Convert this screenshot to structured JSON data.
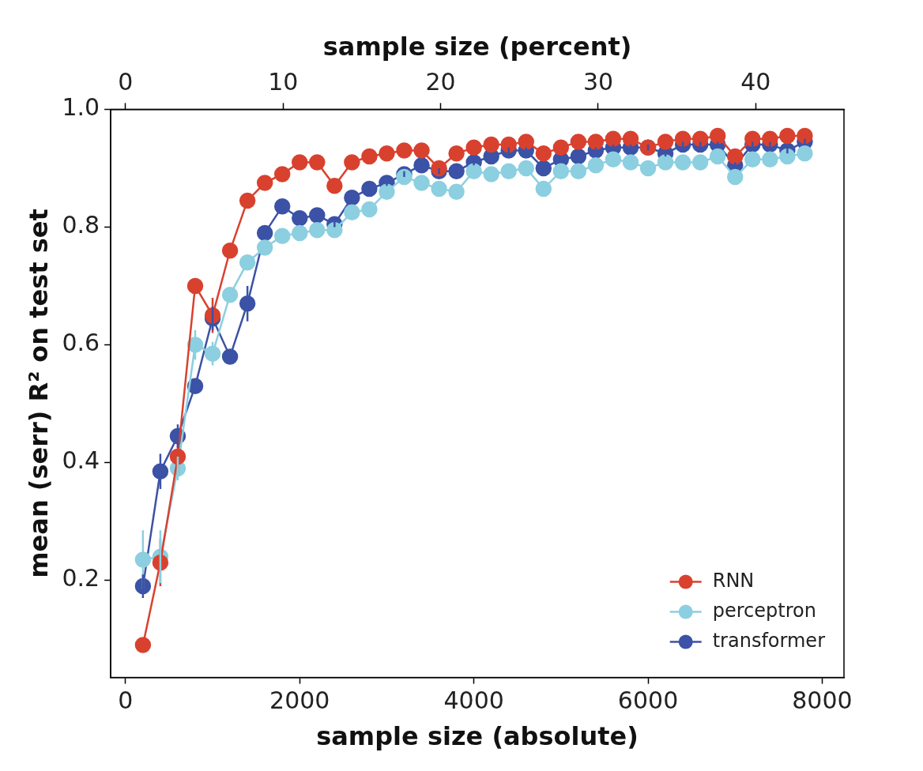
{
  "chart_data": {
    "type": "line",
    "x_label": "sample size (absolute)",
    "y_label": "mean (serr) R² on test set",
    "x2_label": "sample size (percent)",
    "xlim": [
      -170,
      8250
    ],
    "xticks": [
      0,
      2000,
      4000,
      6000,
      8000
    ],
    "x2lim": [
      -0.94,
      45.6
    ],
    "x2ticks": [
      0,
      10,
      20,
      30,
      40
    ],
    "ylim": [
      0.035,
      1.0
    ],
    "yticks": [
      0.2,
      0.4,
      0.6,
      0.8,
      {
        "value": 1,
        "label": "1.0"
      }
    ],
    "grid": false,
    "legend": "lower right",
    "x": [
      200,
      400,
      600,
      800,
      1000,
      1200,
      1400,
      1600,
      1800,
      2000,
      2200,
      2400,
      2600,
      2800,
      3000,
      3200,
      3400,
      3600,
      3800,
      4000,
      4200,
      4400,
      4600,
      4800,
      5000,
      5200,
      5400,
      5600,
      5800,
      6000,
      6200,
      6400,
      6600,
      6800,
      7000,
      7200,
      7400,
      7600,
      7800
    ],
    "series": [
      {
        "name": "RNN",
        "color": "#d9412f",
        "marker": "circle",
        "values": [
          0.09,
          0.23,
          0.41,
          0.7,
          0.65,
          0.76,
          0.845,
          0.875,
          0.89,
          0.91,
          0.91,
          0.87,
          0.91,
          0.92,
          0.925,
          0.93,
          0.93,
          0.9,
          0.925,
          0.935,
          0.94,
          0.94,
          0.945,
          0.925,
          0.935,
          0.945,
          0.945,
          0.95,
          0.95,
          0.935,
          0.945,
          0.95,
          0.95,
          0.955,
          0.92,
          0.95,
          0.95,
          0.955,
          0.955
        ],
        "errors": [
          0.005,
          0.04,
          0.03,
          0.01,
          0.03,
          0.01,
          0.005,
          0.005,
          0.005,
          0.005,
          0.005,
          0.01,
          0.005,
          0.005,
          0.005,
          0.005,
          0.005,
          0.005,
          0.005,
          0.005,
          0.005,
          0.005,
          0.005,
          0.005,
          0.005,
          0.005,
          0.005,
          0.005,
          0.005,
          0.005,
          0.005,
          0.005,
          0.005,
          0.005,
          0.005,
          0.005,
          0.005,
          0.005,
          0.005
        ]
      },
      {
        "name": "perceptron",
        "color": "#8ccfe0",
        "marker": "circle",
        "values": [
          0.235,
          0.24,
          0.39,
          0.6,
          0.585,
          0.685,
          0.74,
          0.765,
          0.785,
          0.79,
          0.795,
          0.795,
          0.825,
          0.83,
          0.86,
          0.885,
          0.875,
          0.865,
          0.86,
          0.895,
          0.89,
          0.895,
          0.9,
          0.865,
          0.895,
          0.895,
          0.905,
          0.915,
          0.91,
          0.9,
          0.91,
          0.91,
          0.91,
          0.92,
          0.885,
          0.915,
          0.915,
          0.92,
          0.925
        ],
        "errors": [
          0.05,
          0.045,
          0.02,
          0.025,
          0.02,
          0.01,
          0.01,
          0.005,
          0.005,
          0.005,
          0.005,
          0.005,
          0.005,
          0.005,
          0.005,
          0.005,
          0.005,
          0.005,
          0.005,
          0.005,
          0.005,
          0.005,
          0.005,
          0.005,
          0.005,
          0.005,
          0.005,
          0.005,
          0.005,
          0.005,
          0.005,
          0.005,
          0.005,
          0.005,
          0.005,
          0.005,
          0.005,
          0.005,
          0.005
        ]
      },
      {
        "name": "transformer",
        "color": "#3b52a6",
        "marker": "circle",
        "values": [
          0.19,
          0.385,
          0.445,
          0.53,
          0.645,
          0.58,
          0.67,
          0.79,
          0.835,
          0.815,
          0.82,
          0.805,
          0.85,
          0.865,
          0.875,
          0.89,
          0.905,
          0.895,
          0.895,
          0.91,
          0.92,
          0.93,
          0.93,
          0.9,
          0.915,
          0.92,
          0.93,
          0.935,
          0.935,
          0.935,
          0.925,
          0.94,
          0.94,
          0.94,
          0.905,
          0.94,
          0.94,
          0.93,
          0.945
        ],
        "errors": [
          0.02,
          0.03,
          0.02,
          0.01,
          0.02,
          0.01,
          0.03,
          0.01,
          0.005,
          0.005,
          0.005,
          0.005,
          0.005,
          0.005,
          0.005,
          0.005,
          0.005,
          0.005,
          0.005,
          0.005,
          0.005,
          0.005,
          0.005,
          0.005,
          0.005,
          0.005,
          0.005,
          0.005,
          0.005,
          0.005,
          0.005,
          0.005,
          0.005,
          0.005,
          0.005,
          0.005,
          0.005,
          0.005,
          0.005
        ]
      }
    ]
  }
}
